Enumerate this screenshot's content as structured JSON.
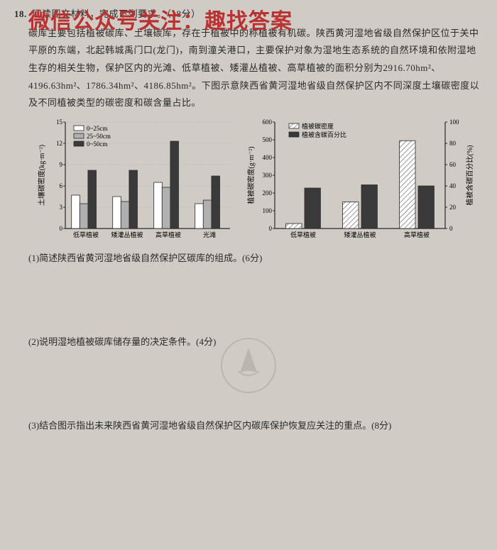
{
  "watermark": "微信公众号关注：趣找答案",
  "question": {
    "number": "18.",
    "prompt": "阅读图文材料，完成下列要求。（18分）",
    "paragraph": "碳库主要包括植被碳库、土壤碳库，存在于植被中的称植被有机碳。陕西黄河湿地省级自然保护区位于关中平原的东端，北起韩城禹门口(龙门)，南到潼关港口，主要保护对象为湿地生态系统的自然环境和依附湿地生存的相关生物，保护区内的光滩、低草植被、矮灌丛植被、高草植被的面积分别为2916.70hm²、4196.63hm²、1786.34hm²、4186.85hm²。下图示意陕西省黄河湿地省级自然保护区内不同深度土壤碳密度以及不同植被类型的碳密度和碳含量占比。"
  },
  "chart1": {
    "type": "bar",
    "ylabel": "土壤碳密度(kg·m⁻²)",
    "ylim": [
      0,
      15
    ],
    "yticks": [
      0,
      3,
      6,
      9,
      12,
      15
    ],
    "legend": [
      "0~25cm",
      "25~50cm",
      "0~50cm"
    ],
    "categories": [
      "低草植被",
      "矮灌丛植被",
      "高草植被",
      "光滩"
    ],
    "series": {
      "d0_25": [
        4.7,
        4.5,
        6.5,
        3.5
      ],
      "d25_50": [
        3.5,
        3.8,
        5.8,
        4.0
      ],
      "d0_50": [
        8.2,
        8.2,
        12.3,
        7.4
      ]
    },
    "colors": {
      "d0_25": "#ffffff",
      "d25_50": "#b0b0b0",
      "d0_50": "#3a3a3a"
    },
    "bar_border": "#2a2a2a",
    "grid_color": "#9a9a9a",
    "tick_fontsize": 9
  },
  "chart2": {
    "type": "bar_dual_axis",
    "ylabel_left": "植被碳密度(g·m⁻²)",
    "ylabel_right": "植被含碳百分比(%)",
    "ylim_left": [
      0,
      600
    ],
    "yticks_left": [
      0,
      100,
      200,
      300,
      400,
      500,
      600
    ],
    "ylim_right": [
      0,
      100
    ],
    "yticks_right": [
      0,
      20,
      40,
      60,
      80,
      100
    ],
    "legend": [
      "植被碳密度",
      "植被含碳百分比"
    ],
    "categories": [
      "低草植被",
      "矮灌丛植被",
      "高草植被"
    ],
    "density": [
      28,
      150,
      495
    ],
    "percent": [
      38,
      41,
      40
    ],
    "colors": {
      "density_fill": "#ffffff",
      "density_hatch": "#555",
      "percent": "#3a3a3a"
    },
    "bar_border": "#2a2a2a",
    "tick_fontsize": 9
  },
  "subquestions": {
    "q1": "(1)简述陕西省黄河湿地省级自然保护区碳库的组成。(6分)",
    "q2": "(2)说明湿地植被碳库储存量的决定条件。(4分)",
    "q3": "(3)结合图示指出未来陕西省黄河湿地省级自然保护区内碳库保护恢复应关注的重点。(8分)"
  }
}
